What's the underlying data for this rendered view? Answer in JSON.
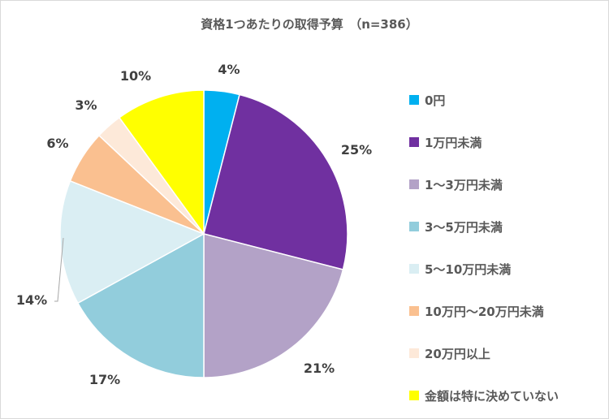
{
  "chart_data": {
    "type": "pie",
    "title": "資格1つあたりの取得予算　（n=386）",
    "categories": [
      "0円",
      "1万円未満",
      "1～3万円未満",
      "3～5万円未満",
      "5～10万円未満",
      "10万円～20万円未満",
      "20万円以上",
      "金額は特に決めていない"
    ],
    "values": [
      4,
      25,
      21,
      17,
      14,
      6,
      3,
      10
    ],
    "unit": "%",
    "colors": [
      "#00B0F0",
      "#7030A0",
      "#B3A2C7",
      "#92CDDC",
      "#DAEEF3",
      "#FAC090",
      "#FDE9D9",
      "#FFFF00"
    ],
    "legend_position": "right"
  }
}
